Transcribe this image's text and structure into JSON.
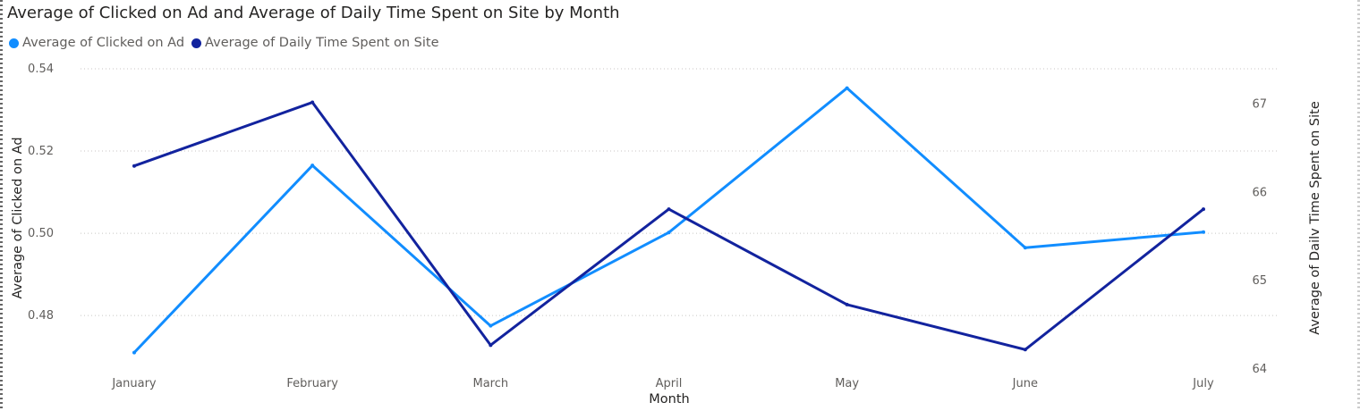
{
  "chart_data": {
    "type": "line",
    "title": "Average of Clicked on Ad and Average of Daily Time Spent on Site by Month",
    "xlabel": "Month",
    "ylabel": "Average of Clicked on Ad",
    "y2label": "Average of Dailv Time Spent on Site",
    "categories": [
      "January",
      "February",
      "March",
      "April",
      "May",
      "June",
      "July"
    ],
    "ylim": [
      0.467,
      0.54
    ],
    "yticks": [
      "0.48",
      "0.50",
      "0.52",
      "0.54"
    ],
    "y2lim": [
      64,
      67.4
    ],
    "y2ticks": [
      "64",
      "65",
      "66",
      "67"
    ],
    "grid": true,
    "legend_position": "top-left",
    "series": [
      {
        "name": "Average of Clicked on Ad",
        "axis": "left",
        "color": "#118DFF",
        "values": [
          0.471,
          0.5165,
          0.4775,
          0.5002,
          0.5353,
          0.4965,
          0.5003
        ]
      },
      {
        "name": "Average of Daily Time Spent on Site",
        "axis": "right",
        "color": "#12239E",
        "values": [
          66.3,
          67.02,
          64.27,
          65.81,
          64.73,
          64.22,
          65.81
        ]
      }
    ]
  }
}
